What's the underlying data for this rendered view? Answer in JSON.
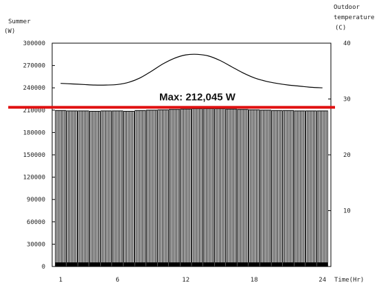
{
  "chart_data": {
    "type": "bar",
    "title": "Summer",
    "y_left_label": "(W)",
    "y_right_label_line1": "Outdoor",
    "y_right_label_line2": "temperature",
    "y_right_unit": "(C)",
    "x_label": "Time(Hr)",
    "ylim_left": [
      0,
      300000
    ],
    "ylim_right": [
      0,
      40
    ],
    "left_ticks": [
      "300000",
      "270000",
      "240000",
      "210000",
      "180000",
      "150000",
      "120000",
      "90000",
      "60000",
      "30000",
      "0"
    ],
    "right_ticks": [
      "40",
      "30",
      "20",
      "10"
    ],
    "x_ticks": [
      "1",
      "6",
      "12",
      "18",
      "24"
    ],
    "categories": [
      1,
      2,
      3,
      4,
      5,
      6,
      7,
      8,
      9,
      10,
      11,
      12,
      13,
      14,
      15,
      16,
      17,
      18,
      19,
      20,
      21,
      22,
      23,
      24
    ],
    "series": [
      {
        "kind": "bar",
        "values": [
          209500,
          209000,
          209000,
          208500,
          209000,
          209000,
          208500,
          209500,
          210000,
          210500,
          211000,
          211500,
          212000,
          212045,
          212000,
          211500,
          211000,
          210500,
          210000,
          209500,
          209500,
          209000,
          209000,
          209000
        ]
      },
      {
        "kind": "line",
        "axis": "right",
        "values": [
          32.8,
          32.7,
          32.6,
          32.5,
          32.5,
          32.6,
          33.0,
          33.8,
          35.0,
          36.3,
          37.3,
          37.9,
          38.0,
          37.7,
          36.9,
          35.8,
          34.7,
          33.8,
          33.2,
          32.8,
          32.5,
          32.3,
          32.1,
          32.0
        ]
      }
    ],
    "max_line": {
      "value": 212045,
      "label": "Max: 212,045 W",
      "color": "#e01010"
    },
    "grid": false
  }
}
